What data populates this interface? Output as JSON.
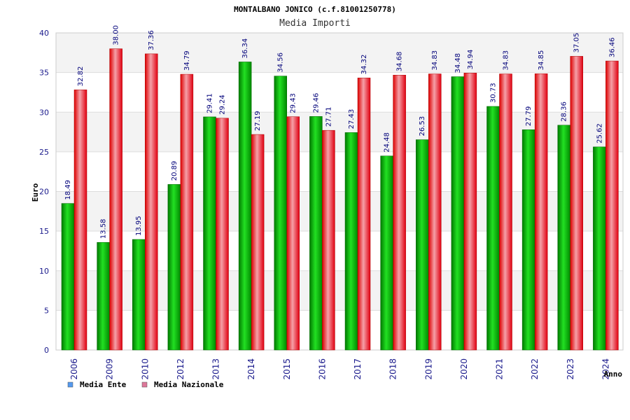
{
  "chart_data": {
    "type": "bar",
    "title": "MONTALBANO JONICO (c.f.81001250778)",
    "subtitle": "Media Importi",
    "xlabel": "Anno",
    "ylabel": "Euro",
    "ylim": [
      0,
      40
    ],
    "yticks": [
      0,
      5,
      10,
      15,
      20,
      25,
      30,
      35,
      40
    ],
    "grid": true,
    "legend_position": "bottom-left",
    "categories": [
      "2006",
      "2009",
      "2010",
      "2012",
      "2013",
      "2014",
      "2015",
      "2016",
      "2017",
      "2018",
      "2019",
      "2020",
      "2021",
      "2022",
      "2023",
      "2024"
    ],
    "series": [
      {
        "name": "Media Ente",
        "color": "#00b000",
        "legend_color": "#5599ee",
        "values": [
          18.49,
          13.58,
          13.95,
          20.89,
          29.41,
          36.34,
          34.56,
          29.46,
          27.43,
          24.48,
          26.53,
          34.48,
          30.73,
          27.79,
          28.36,
          25.62
        ],
        "labels": [
          "18.49",
          "13.58",
          "13.95",
          "20.89",
          "29.41",
          "36.34",
          "34.56",
          "29.46",
          "27.43",
          "24.48",
          "26.53",
          "34.48",
          "30.73",
          "27.79",
          "28.36",
          "25.62"
        ]
      },
      {
        "name": "Media Nazionale",
        "color": "#ee1111",
        "legend_color": "#dd7799",
        "values": [
          32.82,
          38.0,
          37.36,
          34.79,
          29.24,
          27.19,
          29.43,
          27.71,
          34.32,
          34.68,
          34.83,
          34.94,
          34.83,
          34.85,
          37.05,
          36.46
        ],
        "labels": [
          "32.82",
          "38.00",
          "37.36",
          "34.79",
          "29.24",
          "27.19",
          "29.43",
          "27.71",
          "34.32",
          "34.68",
          "34.83",
          "34.94",
          "34.83",
          "34.85",
          "37.05",
          "36.46"
        ]
      }
    ]
  }
}
